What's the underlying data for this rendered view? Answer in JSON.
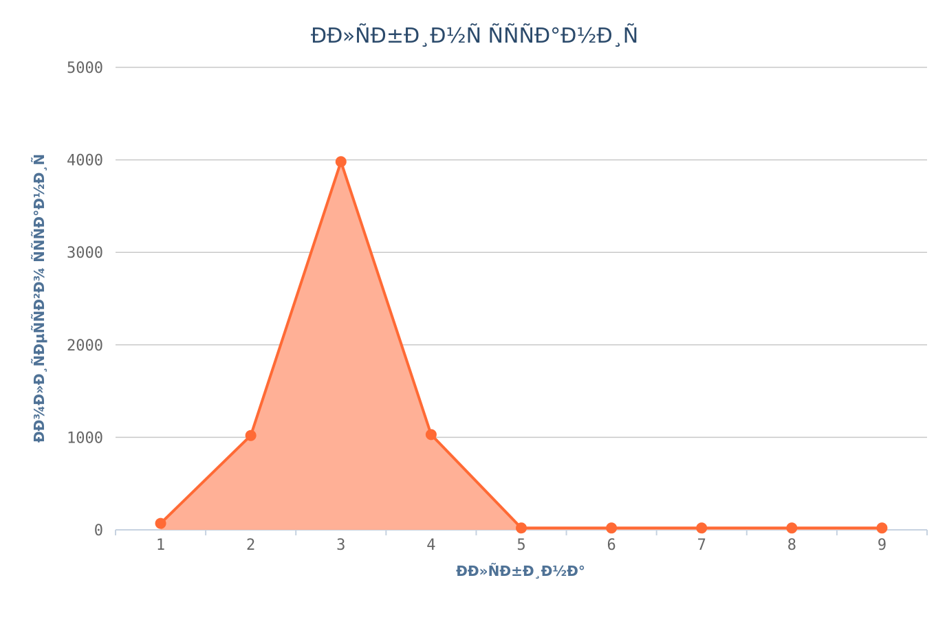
{
  "colors": {
    "series_line": "#ff6a35",
    "series_fill": "#ffb096",
    "title": "#2b4a6b",
    "axis_title": "#4f7296",
    "grid": "#c8c8c8"
  },
  "chart_data": {
    "type": "area",
    "title": "ÐÐ»ÑÐ±Ð¸Ð½Ñ ÑÑÑÐ°Ð½Ð¸Ñ",
    "xlabel": "ÐÐ»ÑÐ±Ð¸Ð½Ð°",
    "ylabel": "ÐÐ¾Ð»Ð¸ÑÐµÑÑÐ²Ð¾ ÑÑÑÐ°Ð½Ð¸Ñ",
    "x": [
      1,
      2,
      3,
      4,
      5,
      6,
      7,
      8,
      9
    ],
    "categories": [
      "1",
      "2",
      "3",
      "4",
      "5",
      "6",
      "7",
      "8",
      "9"
    ],
    "series": [
      {
        "values": [
          70,
          1020,
          3980,
          1030,
          20,
          20,
          20,
          20,
          20
        ]
      }
    ],
    "ylim": [
      0,
      5000
    ],
    "yticks": [
      0,
      1000,
      2000,
      3000,
      4000,
      5000
    ],
    "grid": true,
    "legend": "none"
  }
}
